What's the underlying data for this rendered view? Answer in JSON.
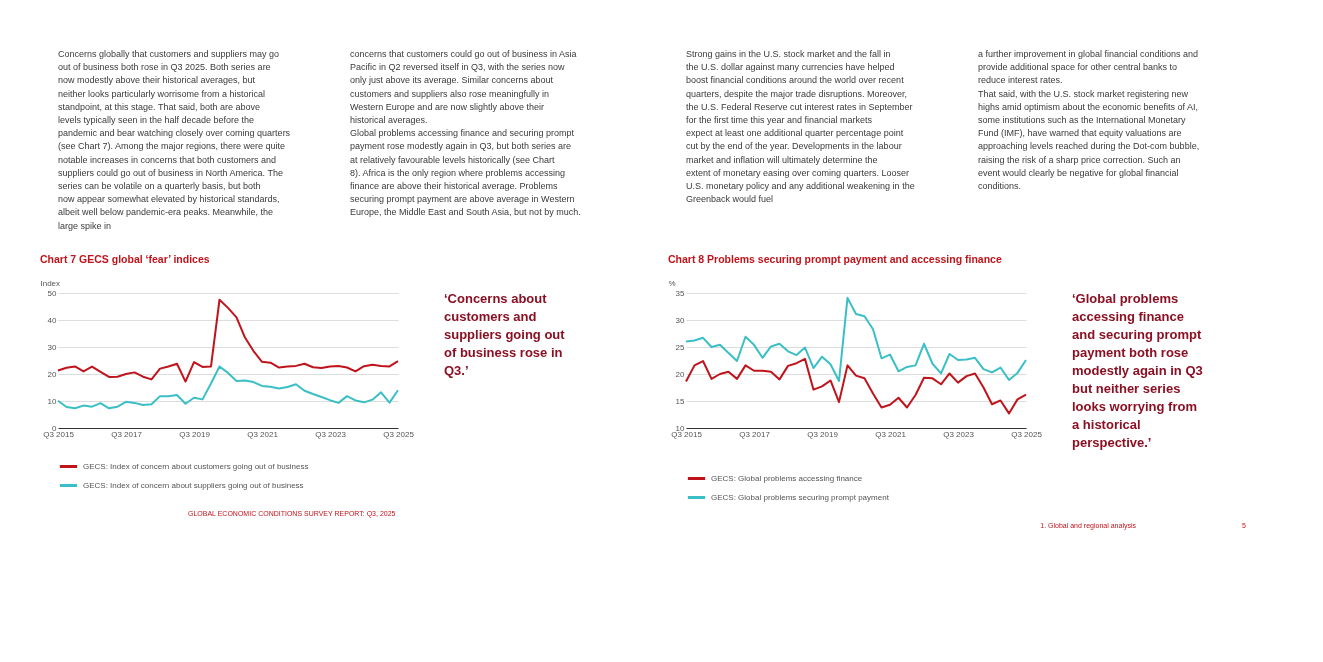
{
  "chart_data": [
    {
      "type": "line",
      "title": "Chart 7 GECS global ‘fear’ indices",
      "ylabel": "Index",
      "categories": [
        "Q3 2015",
        null,
        null,
        null,
        null,
        null,
        null,
        null,
        "Q3 2017",
        null,
        null,
        null,
        null,
        null,
        null,
        null,
        "Q3 2019",
        null,
        null,
        null,
        null,
        null,
        null,
        null,
        "Q3 2021",
        null,
        null,
        null,
        null,
        null,
        null,
        null,
        "Q3 2023",
        null,
        null,
        null,
        null,
        null,
        null,
        null,
        "Q3 2025"
      ],
      "series": [
        {
          "name": "GECS: Index of concern about customers going out of business",
          "color": "#c0141c",
          "values": [
            21.3,
            22.3,
            22.8,
            21,
            22.7,
            20.8,
            18.9,
            19,
            20,
            20.6,
            19,
            18,
            22,
            22.8,
            23.8,
            17.2,
            24.4,
            22.6,
            22.8,
            47.5,
            44.5,
            41,
            33.5,
            28.5,
            24.5,
            24.2,
            22.4,
            22.8,
            23,
            23.8,
            22.5,
            22.2,
            22.8,
            23,
            22.4,
            21,
            22.9,
            23.4,
            23,
            22.8,
            24.8
          ]
        },
        {
          "name": "GECS: Index of concern about suppliers going out of business",
          "color": "#3bbfc6",
          "values": [
            10.1,
            7.8,
            7.3,
            8.3,
            7.9,
            9.2,
            7.3,
            7.9,
            9.7,
            9.3,
            8.5,
            8.8,
            11.8,
            11.8,
            12.2,
            9,
            11.2,
            10.6,
            16.5,
            22.8,
            20.4,
            17.4,
            17.6,
            17,
            15.6,
            15.3,
            14.6,
            15.2,
            16.2,
            13.8,
            12.6,
            11.5,
            10.3,
            9.3,
            11.8,
            10.2,
            9.5,
            10.5,
            13.2,
            9.4,
            14
          ]
        }
      ],
      "ylim": [
        0,
        50
      ],
      "yticks": [
        0,
        10,
        20,
        30,
        40,
        50
      ],
      "grid": "y",
      "legend": "bottom",
      "marker": "none",
      "line_style": "solid",
      "annotations": [
        "Concerns globally that customers and suppliers may go out of business both rose in Q3 2025. Both series are now modestly above their historical averages, but neither looks particularly worrisome from a historical standpoint, at this stage. That said, both are above levels typically seen in the half decade before the pandemic and bear watching closely over coming quarters (see Chart 7). Among the major regions, there were quite notable increases in concerns that both customers and suppliers could go out of business in North America. The series can be volatile on a quarterly basis, but both now appear somewhat elevated by historical standards, albeit well below pandemic-era peaks. Meanwhile, the large spike in",
        "concerns that customers could go out of business in Asia Pacific in Q2 reversed itself in Q3, with the series now only just above its average. Similar concerns about customers and suppliers also rose meaningfully in Western Europe and are now slightly above their historical averages.\n\nGlobal problems accessing finance and securing prompt payment rose modestly again in Q3, but both series are at relatively favourable levels historically (see Chart 8). Africa is the only region where problems accessing finance are above their historical average. Problems securing prompt payment are above average in Western Europe, the Middle East and South Asia, but not by much.",
        "‘Concerns about customers and suppliers going out of business rose in Q3.’",
        "GLOBAL ECONOMIC CONDITIONS SURVEY REPORT: Q3, 2025"
      ]
    },
    {
      "type": "line",
      "title": "Chart 8 Problems securing prompt payment and accessing finance",
      "ylabel": "%",
      "categories": [
        "Q3 2015",
        null,
        null,
        null,
        null,
        null,
        null,
        null,
        "Q3 2017",
        null,
        null,
        null,
        null,
        null,
        null,
        null,
        "Q3 2019",
        null,
        null,
        null,
        null,
        null,
        null,
        null,
        "Q3 2021",
        null,
        null,
        null,
        null,
        null,
        null,
        null,
        "Q3 2023",
        null,
        null,
        null,
        null,
        null,
        null,
        null,
        "Q3 2025"
      ],
      "series": [
        {
          "name": "GECS: Global problems accessing finance",
          "color": "#c0141c",
          "values": [
            18.6,
            21.6,
            22.4,
            19.1,
            20,
            20.4,
            19.1,
            21.6,
            20.6,
            20.6,
            20.4,
            19,
            21.5,
            22,
            22.8,
            17.1,
            17.7,
            18.8,
            14.8,
            21.6,
            19.7,
            19.2,
            16.4,
            13.8,
            14.3,
            15.6,
            13.8,
            16.1,
            19.3,
            19.2,
            18.1,
            20.1,
            18.4,
            19.6,
            20.1,
            17.5,
            14.4,
            15.1,
            12.7,
            15.3,
            16.2
          ]
        },
        {
          "name": "GECS: Global problems securing prompt payment",
          "color": "#3bbfc6",
          "values": [
            26,
            26.2,
            26.7,
            25,
            25.4,
            23.9,
            22.4,
            26.9,
            25.4,
            23,
            25.1,
            25.6,
            24.2,
            23.5,
            24.9,
            21.1,
            23.2,
            21.8,
            18.7,
            34.1,
            31.1,
            30.7,
            28.3,
            22.9,
            23.6,
            20.5,
            21.3,
            21.6,
            25.6,
            21.9,
            20.1,
            23.7,
            22.6,
            22.7,
            23,
            20.9,
            20.3,
            21.2,
            18.9,
            20.2,
            22.6
          ]
        }
      ],
      "ylim": [
        10,
        35
      ],
      "yticks": [
        10,
        15,
        20,
        25,
        30,
        35
      ],
      "grid": "y",
      "legend": "bottom",
      "marker": "none",
      "line_style": "solid",
      "annotations": [
        "Strong gains in the U.S. stock market and the fall in the U.S. dollar against many currencies have helped boost financial conditions around the world over recent quarters, despite the major trade disruptions. Moreover, the U.S. Federal Reserve cut interest rates in September for the first time this year and financial markets expect at least one additional quarter percentage point cut by the end of the year. Developments in the labour market and inflation will ultimately determine the extent of monetary easing over coming quarters. Looser U.S. monetary policy and any additional weakening in the Greenback would fuel",
        "a further improvement in global financial conditions and provide additional space for other central banks to reduce interest rates.\n\nThat said, with the U.S. stock market registering new highs amid optimism about the economic benefits of AI, some institutions such as the International Monetary Fund (IMF), have warned that equity valuations are approaching levels reached during the Dot-com bubble, raising the risk of a sharp price correction. Such an event would clearly be negative for global financial conditions.",
        "‘Global problems accessing finance and securing prompt payment both rose modestly again in Q3 but neither series looks worrying from a historical perspective.’",
        "1. Global and regional analysis",
        "5"
      ]
    }
  ]
}
